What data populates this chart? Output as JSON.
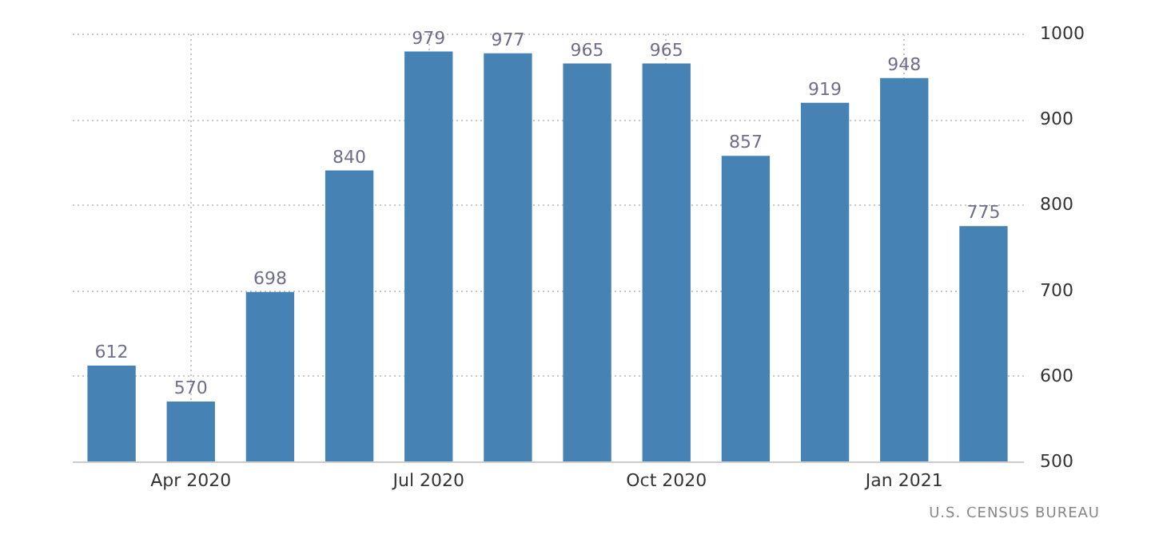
{
  "chart_data": {
    "type": "bar",
    "categories": [
      null,
      "Apr 2020",
      null,
      null,
      "Jul 2020",
      null,
      null,
      "Oct 2020",
      null,
      null,
      "Jan 2021",
      null
    ],
    "values": [
      612,
      570,
      698,
      840,
      979,
      977,
      965,
      965,
      857,
      919,
      948,
      775
    ],
    "color": "#4682b4",
    "data_labels": true,
    "ylim": [
      500,
      1000
    ],
    "yticks": [
      500,
      600,
      700,
      800,
      900,
      1000
    ],
    "grid": true,
    "annotations": [
      "U.S. CENSUS BUREAU"
    ]
  }
}
